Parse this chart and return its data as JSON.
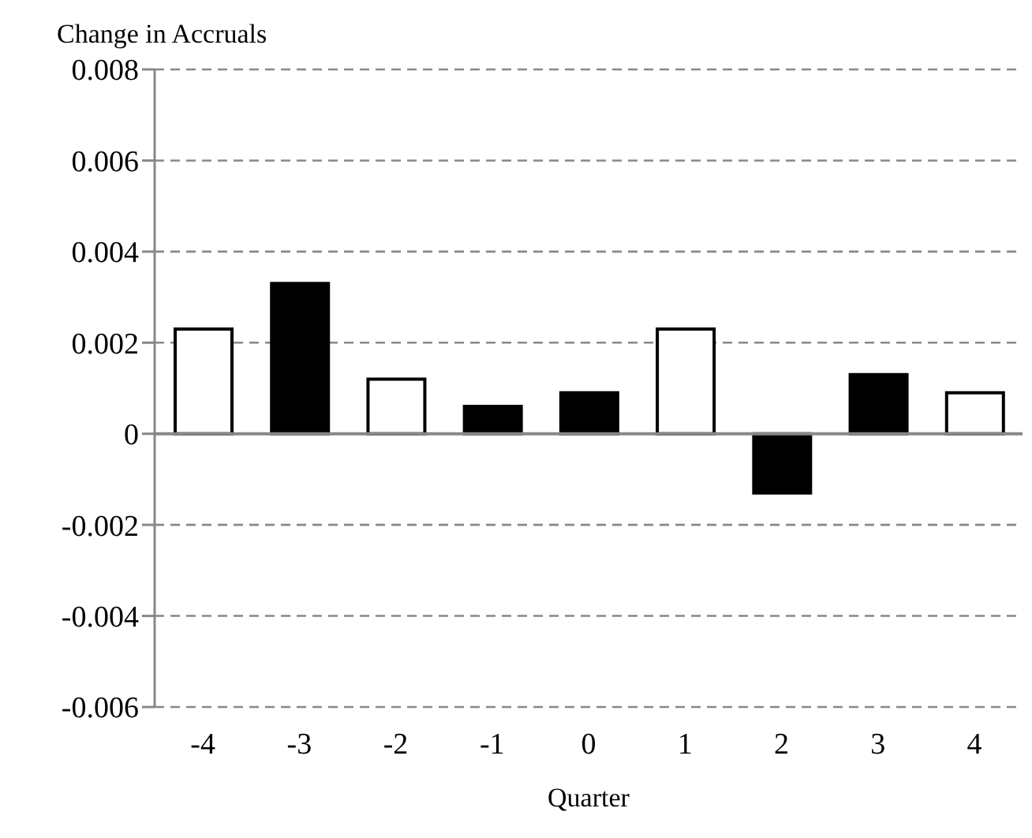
{
  "chart_data": {
    "type": "bar",
    "ylabel": "Change in Accruals",
    "xlabel": "Quarter",
    "categories": [
      "-4",
      "-3",
      "-2",
      "-1",
      "0",
      "1",
      "2",
      "3",
      "4"
    ],
    "values": [
      0.0023,
      0.0033,
      0.0012,
      0.0006,
      0.0009,
      0.0023,
      -0.0013,
      0.0013,
      0.0009
    ],
    "colors": [
      "#ffffff",
      "#000000",
      "#ffffff",
      "#000000",
      "#000000",
      "#ffffff",
      "#000000",
      "#000000",
      "#ffffff"
    ],
    "ylim": [
      -0.006,
      0.008
    ],
    "yticks": [
      -0.006,
      -0.004,
      -0.002,
      0,
      0.002,
      0.004,
      0.006,
      0.008
    ],
    "grid": "y"
  }
}
